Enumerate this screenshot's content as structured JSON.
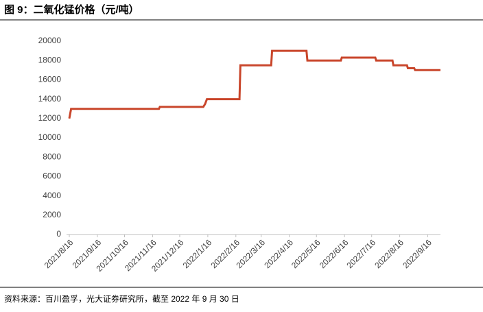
{
  "chart_data": {
    "type": "line",
    "title": "图 9：二氧化锰价格（元/吨）",
    "source": "资料来源：百川盈孚，光大证券研究所，截至 2022 年 9 月 30 日",
    "x": [
      "2021/8/16",
      "2021/8/18",
      "2021/11/23",
      "2021/11/24",
      "2022/1/11",
      "2022/1/13",
      "2022/1/15",
      "2022/2/20",
      "2022/2/21",
      "2022/3/27",
      "2022/3/28",
      "2022/5/5",
      "2022/5/6",
      "2022/6/12",
      "2022/6/13",
      "2022/7/20",
      "2022/7/21",
      "2022/8/8",
      "2022/8/9",
      "2022/8/24",
      "2022/8/25",
      "2022/9/1",
      "2022/9/2",
      "2022/9/30"
    ],
    "series": [
      {
        "name": "二氧化锰价格",
        "color": "#c9462b",
        "values": [
          12000,
          13000,
          13000,
          13200,
          13200,
          13500,
          14000,
          14000,
          17500,
          17500,
          19000,
          19000,
          18000,
          18000,
          18300,
          18300,
          18000,
          18000,
          17500,
          17500,
          17200,
          17200,
          17000,
          17000
        ]
      }
    ],
    "xlim": [
      "2021/8/16",
      "2022/9/30"
    ],
    "xticks": [
      "2021/8/16",
      "2021/9/16",
      "2021/10/16",
      "2021/11/16",
      "2021/12/16",
      "2022/1/16",
      "2022/2/16",
      "2022/3/16",
      "2022/4/16",
      "2022/5/16",
      "2022/6/16",
      "2022/7/16",
      "2022/8/16",
      "2022/9/16"
    ],
    "ylim": [
      0,
      20000
    ],
    "yticks": [
      0,
      2000,
      4000,
      6000,
      8000,
      10000,
      12000,
      14000,
      16000,
      18000,
      20000
    ],
    "grid": false
  }
}
